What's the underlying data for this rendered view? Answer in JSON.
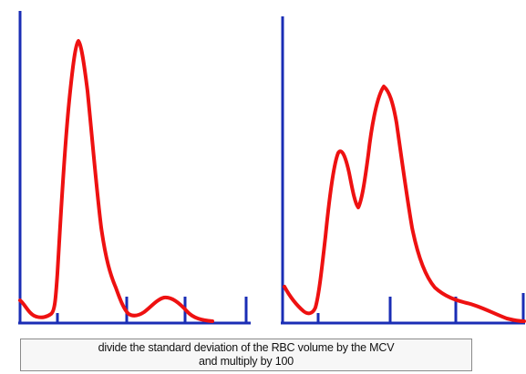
{
  "caption": {
    "line1": "divide the standard deviation of the RBC volume by the MCV",
    "line2": "and multiply by 100"
  },
  "colors": {
    "axis": "#1a2db5",
    "curve": "#ee1111",
    "caption_border": "#8a8a8a",
    "caption_background": "#f7f7f7"
  },
  "histograms": [
    {
      "name": "left-histogram",
      "description_shape": "single-narrow-peak-with-small-hump"
    },
    {
      "name": "right-histogram",
      "description_shape": "bimodal"
    }
  ]
}
